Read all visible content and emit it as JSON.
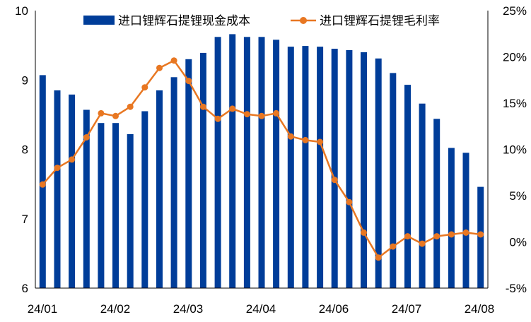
{
  "chart_data": {
    "type": "bar+line",
    "title": "",
    "colors": {
      "bar": "#003D99",
      "line": "#E87722",
      "axis": "#000000"
    },
    "legend": {
      "placement": "top",
      "items": [
        {
          "name": "进口锂辉石提锂现金成本",
          "marker": "bar"
        },
        {
          "name": "进口锂辉石提锂毛利率",
          "marker": "line"
        }
      ]
    },
    "y_left": {
      "min": 6,
      "max": 10,
      "ticks": [
        "6",
        "7",
        "8",
        "9",
        "10"
      ]
    },
    "y_right": {
      "min": -5,
      "max": 25,
      "ticks": [
        "-5%",
        "0%",
        "5%",
        "10%",
        "15%",
        "20%",
        "25%"
      ]
    },
    "x_tick_labels": [
      "24/01",
      "24/02",
      "24/03",
      "24/04",
      "24/06",
      "24/07",
      "24/08"
    ],
    "grid": false,
    "series": [
      {
        "name": "进口锂辉石提锂现金成本",
        "type": "bar",
        "axis": "left",
        "values": [
          9.07,
          8.85,
          8.79,
          8.57,
          8.38,
          8.38,
          8.22,
          8.55,
          8.85,
          9.04,
          9.3,
          9.39,
          9.62,
          9.66,
          9.62,
          9.62,
          9.58,
          9.48,
          9.49,
          9.48,
          9.45,
          9.43,
          9.4,
          9.31,
          9.1,
          8.93,
          8.66,
          8.44,
          8.02,
          7.95,
          7.46
        ]
      },
      {
        "name": "进口锂辉石提锂毛利率",
        "type": "line",
        "axis": "right",
        "values": [
          6.2,
          8.0,
          8.9,
          11.3,
          13.9,
          13.6,
          14.6,
          16.7,
          18.8,
          19.6,
          17.4,
          14.6,
          13.3,
          14.4,
          13.8,
          13.6,
          13.9,
          11.4,
          11.0,
          10.8,
          6.7,
          4.3,
          1.0,
          -1.7,
          -0.5,
          0.6,
          -0.2,
          0.6,
          0.8,
          1.0,
          0.8
        ]
      }
    ]
  }
}
